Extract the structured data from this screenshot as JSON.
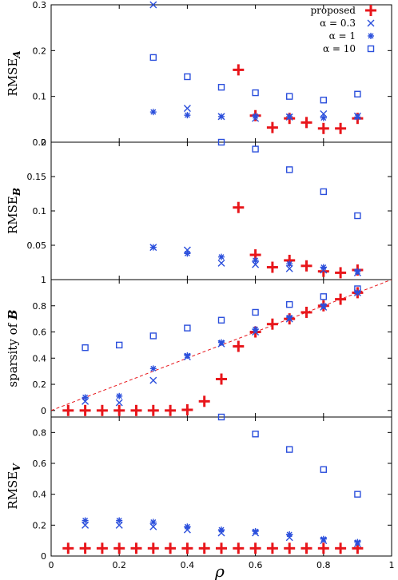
{
  "xaxis": {
    "label": "ρ",
    "range": [
      0,
      1
    ],
    "ticks": [
      0,
      0.2,
      0.4,
      0.6,
      0.8,
      1
    ],
    "tick_labels": [
      "0",
      "0.2",
      "0.4",
      "0.6",
      "0.8",
      "1"
    ]
  },
  "legend": {
    "placement": "top-right",
    "entries": [
      {
        "label": "proposed",
        "marker": "plus",
        "color": "#e8161b"
      },
      {
        "label": "α = 0.3",
        "marker": "cross",
        "color": "#2b4fdc"
      },
      {
        "label": "α = 1",
        "marker": "star",
        "color": "#2b4fdc"
      },
      {
        "label": "α = 10",
        "marker": "square",
        "color": "#2b4fdc"
      }
    ]
  },
  "colors": {
    "proposed": "#e8161b",
    "baseline": "#2b4fdc",
    "diagonal": "#e8161b"
  },
  "chart_data": [
    {
      "type": "scatter",
      "ylabel": "RMSE",
      "ylabel_sub": "A",
      "ylim": [
        0,
        0.3
      ],
      "yticks": [
        0,
        0.1,
        0.2,
        0.3
      ],
      "ytick_labels": [
        "0",
        "0.1",
        "0.2",
        "0.3"
      ],
      "series": [
        {
          "name": "proposed",
          "x": [
            0.55,
            0.6,
            0.65,
            0.7,
            0.75,
            0.8,
            0.85,
            0.9
          ],
          "y": [
            0.158,
            0.058,
            0.032,
            0.052,
            0.043,
            0.03,
            0.03,
            0.052
          ]
        },
        {
          "name": "α = 0.3",
          "x": [
            0.3,
            0.4,
            0.5,
            0.6,
            0.7,
            0.8,
            0.9
          ],
          "y": [
            0.3,
            0.074,
            0.056,
            0.052,
            0.055,
            0.062,
            0.057
          ]
        },
        {
          "name": "α = 1",
          "x": [
            0.3,
            0.4,
            0.5,
            0.6,
            0.7,
            0.8,
            0.9
          ],
          "y": [
            0.066,
            0.059,
            0.056,
            0.057,
            0.056,
            0.053,
            0.055
          ]
        },
        {
          "name": "α = 10",
          "x": [
            0.3,
            0.4,
            0.5,
            0.6,
            0.7,
            0.8,
            0.9
          ],
          "y": [
            0.185,
            0.143,
            0.12,
            0.108,
            0.1,
            0.092,
            0.105
          ]
        }
      ]
    },
    {
      "type": "scatter",
      "ylabel": "RMSE",
      "ylabel_sub": "B",
      "ylim": [
        0,
        0.2
      ],
      "yticks": [
        0.05,
        0.1,
        0.15,
        0.2
      ],
      "ytick_labels": [
        "0.05",
        "0.1",
        "0.15",
        "0.2"
      ],
      "series": [
        {
          "name": "proposed",
          "x": [
            0.55,
            0.6,
            0.65,
            0.7,
            0.75,
            0.8,
            0.85,
            0.9
          ],
          "y": [
            0.105,
            0.036,
            0.018,
            0.028,
            0.02,
            0.012,
            0.01,
            0.014
          ]
        },
        {
          "name": "α = 0.3",
          "x": [
            0.3,
            0.4,
            0.5,
            0.6,
            0.7,
            0.8,
            0.9
          ],
          "y": [
            0.047,
            0.043,
            0.024,
            0.022,
            0.016,
            0.014,
            0.01
          ]
        },
        {
          "name": "α = 1",
          "x": [
            0.3,
            0.4,
            0.5,
            0.6,
            0.7,
            0.8,
            0.9
          ],
          "y": [
            0.047,
            0.038,
            0.033,
            0.028,
            0.023,
            0.018,
            0.012
          ]
        },
        {
          "name": "α = 10",
          "x": [
            0.5,
            0.6,
            0.7,
            0.8,
            0.9
          ],
          "y": [
            0.205,
            0.19,
            0.16,
            0.128,
            0.093
          ]
        }
      ]
    },
    {
      "type": "scatter",
      "ylabel": "sparsity of ",
      "ylabel_bold": "B",
      "ylim": [
        -0.05,
        1.0
      ],
      "yticks": [
        0,
        0.2,
        0.4,
        0.6,
        0.8,
        1
      ],
      "ytick_labels": [
        "0",
        "0.2",
        "0.4",
        "0.6",
        "0.8",
        "1"
      ],
      "diagonal": {
        "x": [
          0,
          1
        ],
        "y": [
          0,
          1
        ],
        "style": "dashed"
      },
      "series": [
        {
          "name": "proposed",
          "x": [
            0.05,
            0.1,
            0.15,
            0.2,
            0.25,
            0.3,
            0.35,
            0.4,
            0.45,
            0.5,
            0.55,
            0.6,
            0.65,
            0.7,
            0.75,
            0.8,
            0.85,
            0.9
          ],
          "y": [
            0,
            0,
            0,
            0,
            0,
            0,
            0,
            0.005,
            0.07,
            0.24,
            0.49,
            0.6,
            0.66,
            0.7,
            0.75,
            0.8,
            0.85,
            0.9
          ]
        },
        {
          "name": "α = 0.3",
          "x": [
            0.1,
            0.2,
            0.3,
            0.4,
            0.5,
            0.6,
            0.7,
            0.8,
            0.9
          ],
          "y": [
            0.07,
            0.06,
            0.23,
            0.41,
            0.51,
            0.6,
            0.7,
            0.79,
            0.9
          ]
        },
        {
          "name": "α = 1",
          "x": [
            0.1,
            0.2,
            0.3,
            0.4,
            0.5,
            0.6,
            0.7,
            0.8,
            0.9
          ],
          "y": [
            0.1,
            0.11,
            0.32,
            0.42,
            0.52,
            0.62,
            0.71,
            0.8,
            0.9
          ]
        },
        {
          "name": "α = 10",
          "x": [
            0.1,
            0.2,
            0.3,
            0.4,
            0.5,
            0.6,
            0.7,
            0.8,
            0.9
          ],
          "y": [
            0.48,
            0.5,
            0.57,
            0.63,
            0.69,
            0.75,
            0.81,
            0.87,
            0.93
          ]
        }
      ]
    },
    {
      "type": "scatter",
      "ylabel": "RMSE",
      "ylabel_sub": "V",
      "ylim": [
        0,
        0.9
      ],
      "yticks": [
        0,
        0.2,
        0.4,
        0.6,
        0.8
      ],
      "ytick_labels": [
        "0",
        "0.2",
        "0.4",
        "0.6",
        "0.8"
      ],
      "series": [
        {
          "name": "proposed",
          "x": [
            0.05,
            0.1,
            0.15,
            0.2,
            0.25,
            0.3,
            0.35,
            0.4,
            0.45,
            0.5,
            0.55,
            0.6,
            0.65,
            0.7,
            0.75,
            0.8,
            0.85,
            0.9
          ],
          "y": [
            0.05,
            0.05,
            0.05,
            0.05,
            0.05,
            0.05,
            0.05,
            0.05,
            0.05,
            0.05,
            0.05,
            0.05,
            0.05,
            0.05,
            0.05,
            0.05,
            0.05,
            0.05
          ]
        },
        {
          "name": "α = 0.3",
          "x": [
            0.1,
            0.2,
            0.3,
            0.4,
            0.5,
            0.6,
            0.7,
            0.8,
            0.9
          ],
          "y": [
            0.2,
            0.2,
            0.19,
            0.17,
            0.15,
            0.15,
            0.12,
            0.1,
            0.08
          ]
        },
        {
          "name": "α = 1",
          "x": [
            0.1,
            0.2,
            0.3,
            0.4,
            0.5,
            0.6,
            0.7,
            0.8,
            0.9
          ],
          "y": [
            0.23,
            0.23,
            0.22,
            0.19,
            0.17,
            0.16,
            0.14,
            0.11,
            0.09
          ]
        },
        {
          "name": "α = 10",
          "x": [
            0.5,
            0.6,
            0.7,
            0.8,
            0.9
          ],
          "y": [
            0.93,
            0.79,
            0.69,
            0.56,
            0.4
          ]
        }
      ]
    }
  ]
}
